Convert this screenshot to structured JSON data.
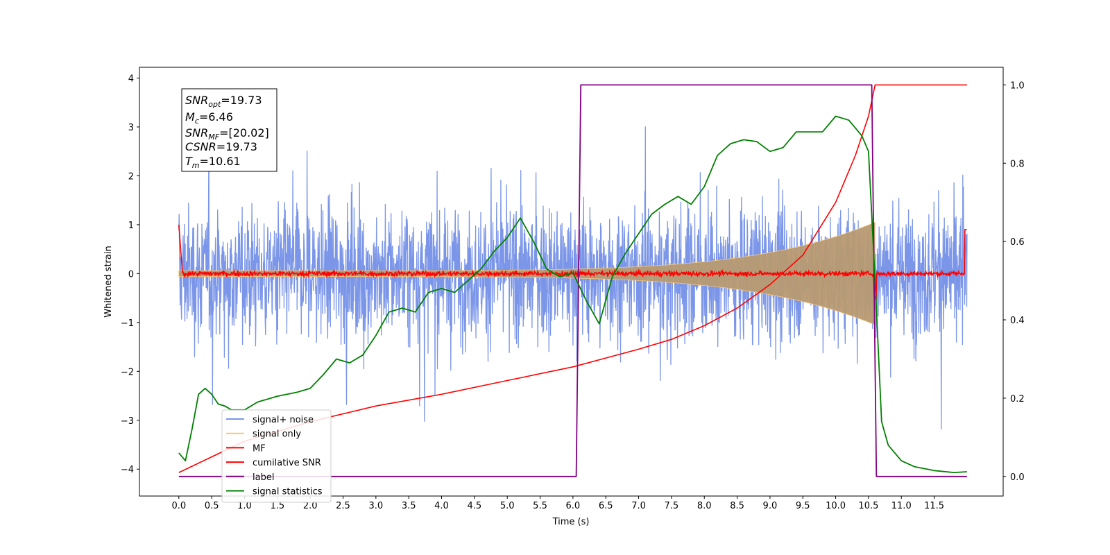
{
  "chart_data": {
    "type": "line",
    "xlabel": "Time (s)",
    "ylabel": "Whitened strain",
    "xlim": [
      -0.6,
      12.55
    ],
    "ylim_left": [
      -4.55,
      4.22
    ],
    "ylim_right": [
      -0.05,
      1.045
    ],
    "xticks": [
      "0.0",
      "0.5",
      "1.0",
      "1.5",
      "2.0",
      "2.5",
      "3.0",
      "3.5",
      "4.0",
      "4.5",
      "5.0",
      "5.5",
      "6.0",
      "6.5",
      "7.0",
      "7.5",
      "8.0",
      "8.5",
      "9.0",
      "9.5",
      "10.0",
      "10.5",
      "11.0",
      "11.5"
    ],
    "yticks_left": [
      "4",
      "3",
      "2",
      "1",
      "0",
      "−1",
      "−2",
      "−3",
      "−4"
    ],
    "yticks_right": [
      "1.0",
      "0.8",
      "0.6",
      "0.4",
      "0.2",
      "0.0"
    ],
    "grid": false,
    "legend_position": "lower-left",
    "info_box": {
      "snr_opt": {
        "base": "SNR",
        "sub": "opt",
        "value": "=19.73"
      },
      "mc": {
        "base": "M",
        "sub": "c",
        "value": "=6.46"
      },
      "snr_mf": {
        "base": "SNR",
        "sub": "MF",
        "value": "=[20.02]"
      },
      "csnr": {
        "base": "CSNR",
        "sub": "",
        "value": "=19.73"
      },
      "tm": {
        "base": "T",
        "sub": "m",
        "value": "=10.61"
      }
    },
    "series": [
      {
        "name": "signal+ noise",
        "color": "#7b96e8",
        "axis": "left",
        "description_range": [
          -4.2,
          3.85
        ],
        "x_range": [
          0.0,
          12.0
        ]
      },
      {
        "name": "signal only",
        "color": "#f5c77e",
        "axis": "left",
        "chirp_end": 10.6,
        "peak_amplitude": 1.05
      },
      {
        "name": "MF",
        "color": "#ff0000",
        "axis": "left",
        "baseline": 0.0
      },
      {
        "name": "cumilative SNR",
        "color": "#ff0000",
        "axis": "right",
        "x": [
          0.0,
          1.0,
          2.0,
          3.0,
          4.0,
          5.0,
          6.0,
          7.0,
          7.5,
          8.0,
          8.5,
          9.0,
          9.5,
          10.0,
          10.3,
          10.5,
          10.6,
          12.0
        ],
        "y": [
          0.01,
          0.09,
          0.14,
          0.18,
          0.21,
          0.245,
          0.28,
          0.325,
          0.35,
          0.385,
          0.43,
          0.49,
          0.565,
          0.7,
          0.82,
          0.92,
          1.0,
          1.0
        ]
      },
      {
        "name": "label",
        "color": "#800080",
        "axis": "right",
        "x": [
          0.0,
          6.05,
          6.12,
          10.55,
          10.62,
          12.0
        ],
        "y": [
          0.0,
          0.0,
          1.0,
          1.0,
          0.0,
          0.0
        ]
      },
      {
        "name": "signal statistics",
        "color": "#008000",
        "axis": "right",
        "x": [
          0.0,
          0.1,
          0.2,
          0.3,
          0.4,
          0.5,
          0.6,
          0.7,
          0.8,
          1.0,
          1.2,
          1.5,
          1.8,
          2.0,
          2.2,
          2.4,
          2.6,
          2.8,
          3.0,
          3.2,
          3.4,
          3.6,
          3.8,
          4.0,
          4.2,
          4.4,
          4.6,
          4.8,
          5.0,
          5.2,
          5.4,
          5.6,
          5.8,
          6.0,
          6.2,
          6.4,
          6.6,
          6.8,
          7.0,
          7.2,
          7.4,
          7.6,
          7.8,
          8.0,
          8.2,
          8.4,
          8.6,
          8.8,
          9.0,
          9.2,
          9.4,
          9.6,
          9.8,
          10.0,
          10.2,
          10.4,
          10.5,
          10.6,
          10.7,
          10.8,
          11.0,
          11.2,
          11.5,
          11.8,
          12.0
        ],
        "y": [
          0.06,
          0.04,
          0.12,
          0.21,
          0.225,
          0.21,
          0.185,
          0.18,
          0.17,
          0.17,
          0.19,
          0.205,
          0.215,
          0.225,
          0.26,
          0.3,
          0.29,
          0.31,
          0.36,
          0.42,
          0.43,
          0.42,
          0.47,
          0.48,
          0.47,
          0.5,
          0.53,
          0.575,
          0.61,
          0.66,
          0.6,
          0.53,
          0.51,
          0.52,
          0.45,
          0.39,
          0.51,
          0.57,
          0.62,
          0.67,
          0.695,
          0.715,
          0.695,
          0.74,
          0.82,
          0.85,
          0.86,
          0.855,
          0.83,
          0.84,
          0.88,
          0.88,
          0.88,
          0.92,
          0.91,
          0.87,
          0.83,
          0.5,
          0.14,
          0.08,
          0.04,
          0.025,
          0.015,
          0.01,
          0.012
        ]
      }
    ]
  },
  "legend": [
    {
      "label": "signal+ noise",
      "color": "#7b96e8"
    },
    {
      "label": "signal only",
      "color": "#f5c77e"
    },
    {
      "label": "MF",
      "color": "#ff0000"
    },
    {
      "label": "cumilative SNR",
      "color": "#ff0000"
    },
    {
      "label": "label",
      "color": "#800080"
    },
    {
      "label": "signal statistics",
      "color": "#008000"
    }
  ]
}
